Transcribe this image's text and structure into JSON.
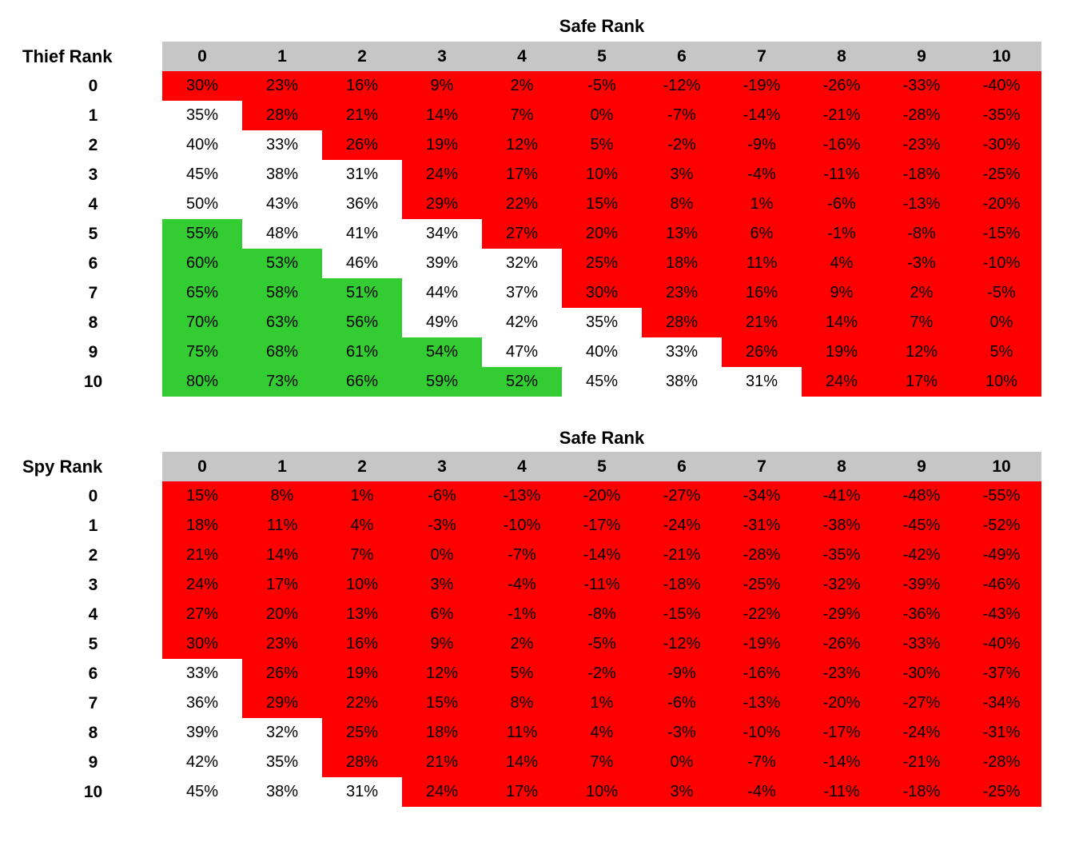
{
  "colors": {
    "red": "#FF0000",
    "green": "#33CC33",
    "header_gray": "#C6C6C6",
    "background": "#FFFFFF",
    "text": "#000000"
  },
  "chart_data": [
    {
      "type": "heatmap",
      "title": "Safe Rank",
      "row_axis_label": "Thief Rank",
      "col_axis_label": "Safe Rank",
      "value_suffix": "%",
      "columns": [
        "0",
        "1",
        "2",
        "3",
        "4",
        "5",
        "6",
        "7",
        "8",
        "9",
        "10"
      ],
      "rows": [
        "0",
        "1",
        "2",
        "3",
        "4",
        "5",
        "6",
        "7",
        "8",
        "9",
        "10"
      ],
      "values": [
        [
          30,
          23,
          16,
          9,
          2,
          -5,
          -12,
          -19,
          -26,
          -33,
          -40
        ],
        [
          35,
          28,
          21,
          14,
          7,
          0,
          -7,
          -14,
          -21,
          -28,
          -35
        ],
        [
          40,
          33,
          26,
          19,
          12,
          5,
          -2,
          -9,
          -16,
          -23,
          -30
        ],
        [
          45,
          38,
          31,
          24,
          17,
          10,
          3,
          -4,
          -11,
          -18,
          -25
        ],
        [
          50,
          43,
          36,
          29,
          22,
          15,
          8,
          1,
          -6,
          -13,
          -20
        ],
        [
          55,
          48,
          41,
          34,
          27,
          20,
          13,
          6,
          -1,
          -8,
          -15
        ],
        [
          60,
          53,
          46,
          39,
          32,
          25,
          18,
          11,
          4,
          -3,
          -10
        ],
        [
          65,
          58,
          51,
          44,
          37,
          30,
          23,
          16,
          9,
          2,
          -5
        ],
        [
          70,
          63,
          56,
          49,
          42,
          35,
          28,
          21,
          14,
          7,
          0
        ],
        [
          75,
          68,
          61,
          54,
          47,
          40,
          33,
          26,
          19,
          12,
          5
        ],
        [
          80,
          73,
          66,
          59,
          52,
          45,
          38,
          31,
          24,
          17,
          10
        ]
      ],
      "color_rule": {
        "red_if_value_lte": 30,
        "green_if_value_gte": 51,
        "otherwise": "white"
      }
    },
    {
      "type": "heatmap",
      "title": "Safe Rank",
      "row_axis_label": "Spy Rank",
      "col_axis_label": "Safe Rank",
      "value_suffix": "%",
      "columns": [
        "0",
        "1",
        "2",
        "3",
        "4",
        "5",
        "6",
        "7",
        "8",
        "9",
        "10"
      ],
      "rows": [
        "0",
        "1",
        "2",
        "3",
        "4",
        "5",
        "6",
        "7",
        "8",
        "9",
        "10"
      ],
      "values": [
        [
          15,
          8,
          1,
          -6,
          -13,
          -20,
          -27,
          -34,
          -41,
          -48,
          -55
        ],
        [
          18,
          11,
          4,
          -3,
          -10,
          -17,
          -24,
          -31,
          -38,
          -45,
          -52
        ],
        [
          21,
          14,
          7,
          0,
          -7,
          -14,
          -21,
          -28,
          -35,
          -42,
          -49
        ],
        [
          24,
          17,
          10,
          3,
          -4,
          -11,
          -18,
          -25,
          -32,
          -39,
          -46
        ],
        [
          27,
          20,
          13,
          6,
          -1,
          -8,
          -15,
          -22,
          -29,
          -36,
          -43
        ],
        [
          30,
          23,
          16,
          9,
          2,
          -5,
          -12,
          -19,
          -26,
          -33,
          -40
        ],
        [
          33,
          26,
          19,
          12,
          5,
          -2,
          -9,
          -16,
          -23,
          -30,
          -37
        ],
        [
          36,
          29,
          22,
          15,
          8,
          1,
          -6,
          -13,
          -20,
          -27,
          -34
        ],
        [
          39,
          32,
          25,
          18,
          11,
          4,
          -3,
          -10,
          -17,
          -24,
          -31
        ],
        [
          42,
          35,
          28,
          21,
          14,
          7,
          0,
          -7,
          -14,
          -21,
          -28
        ],
        [
          45,
          38,
          31,
          24,
          17,
          10,
          3,
          -4,
          -11,
          -18,
          -25
        ]
      ],
      "color_rule": {
        "red_if_value_lte": 30,
        "green_if_value_gte": 51,
        "otherwise": "white"
      }
    }
  ]
}
